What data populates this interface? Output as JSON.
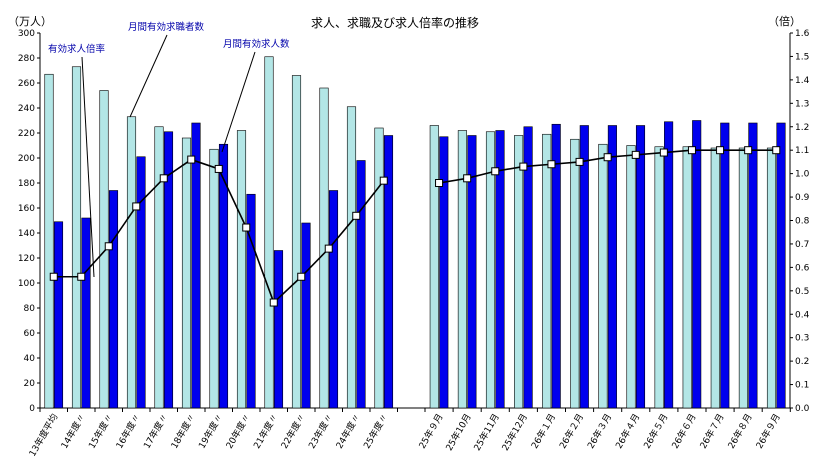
{
  "chart_data": {
    "type": "bar",
    "title": "求人、求職及び求人倍率の推移",
    "y_left_unit": "（万人）",
    "y_right_unit": "（倍）",
    "y_left_range": [
      0,
      300
    ],
    "y_left_ticks": [
      "0",
      "20",
      "40",
      "60",
      "80",
      "100",
      "120",
      "140",
      "160",
      "180",
      "200",
      "220",
      "240",
      "260",
      "280",
      "300"
    ],
    "y_right_range": [
      0,
      1.6
    ],
    "y_right_ticks": [
      "0.0",
      "0.1",
      "0.2",
      "0.3",
      "0.4",
      "0.5",
      "0.6",
      "0.7",
      "0.8",
      "0.9",
      "1.0",
      "1.1",
      "1.2",
      "1.3",
      "1.4",
      "1.5",
      "1.6"
    ],
    "annual_categories": [
      "13年度平均",
      "14年度〃",
      "15年度〃",
      "16年度〃",
      "17年度〃",
      "18年度〃",
      "19年度〃",
      "20年度〃",
      "21年度〃",
      "22年度〃",
      "23年度〃",
      "24年度〃",
      "25年度〃"
    ],
    "monthly_categories": [
      "25年９月",
      "25年10月",
      "25年11月",
      "25年12月",
      "26年１月",
      "26年２月",
      "26年３月",
      "26年４月",
      "26年５月",
      "26年６月",
      "26年７月",
      "26年８月",
      "26年９月"
    ],
    "series": [
      {
        "name": "月間有効求職者数",
        "axis": "left",
        "color": "#b3e6e6",
        "annual": [
          267,
          273,
          254,
          233,
          225,
          216,
          207,
          222,
          281,
          266,
          256,
          241,
          224
        ],
        "monthly": [
          226,
          222,
          221,
          218,
          219,
          215,
          211,
          210,
          209,
          209,
          208,
          208,
          208
        ]
      },
      {
        "name": "月間有効求人数",
        "axis": "left",
        "color": "#0000ee",
        "annual": [
          149,
          152,
          174,
          201,
          221,
          228,
          211,
          171,
          126,
          148,
          174,
          198,
          218
        ],
        "monthly": [
          217,
          218,
          222,
          225,
          227,
          226,
          226,
          226,
          229,
          230,
          228,
          228,
          228
        ]
      },
      {
        "name": "有効求人倍率",
        "axis": "right",
        "color": "#000000",
        "annual": [
          0.56,
          0.56,
          0.69,
          0.86,
          0.98,
          1.06,
          1.02,
          0.77,
          0.45,
          0.56,
          0.68,
          0.82,
          0.97
        ],
        "monthly": [
          0.96,
          0.98,
          1.01,
          1.03,
          1.04,
          1.05,
          1.07,
          1.08,
          1.09,
          1.1,
          1.1,
          1.1,
          1.1
        ]
      }
    ],
    "annotations": [
      {
        "text": "有効求人倍率",
        "target": "有効求人倍率"
      },
      {
        "text": "月間有効求職者数",
        "target": "月間有効求職者数"
      },
      {
        "text": "月間有効求人数",
        "target": "月間有効求人数"
      }
    ],
    "grid": false
  }
}
